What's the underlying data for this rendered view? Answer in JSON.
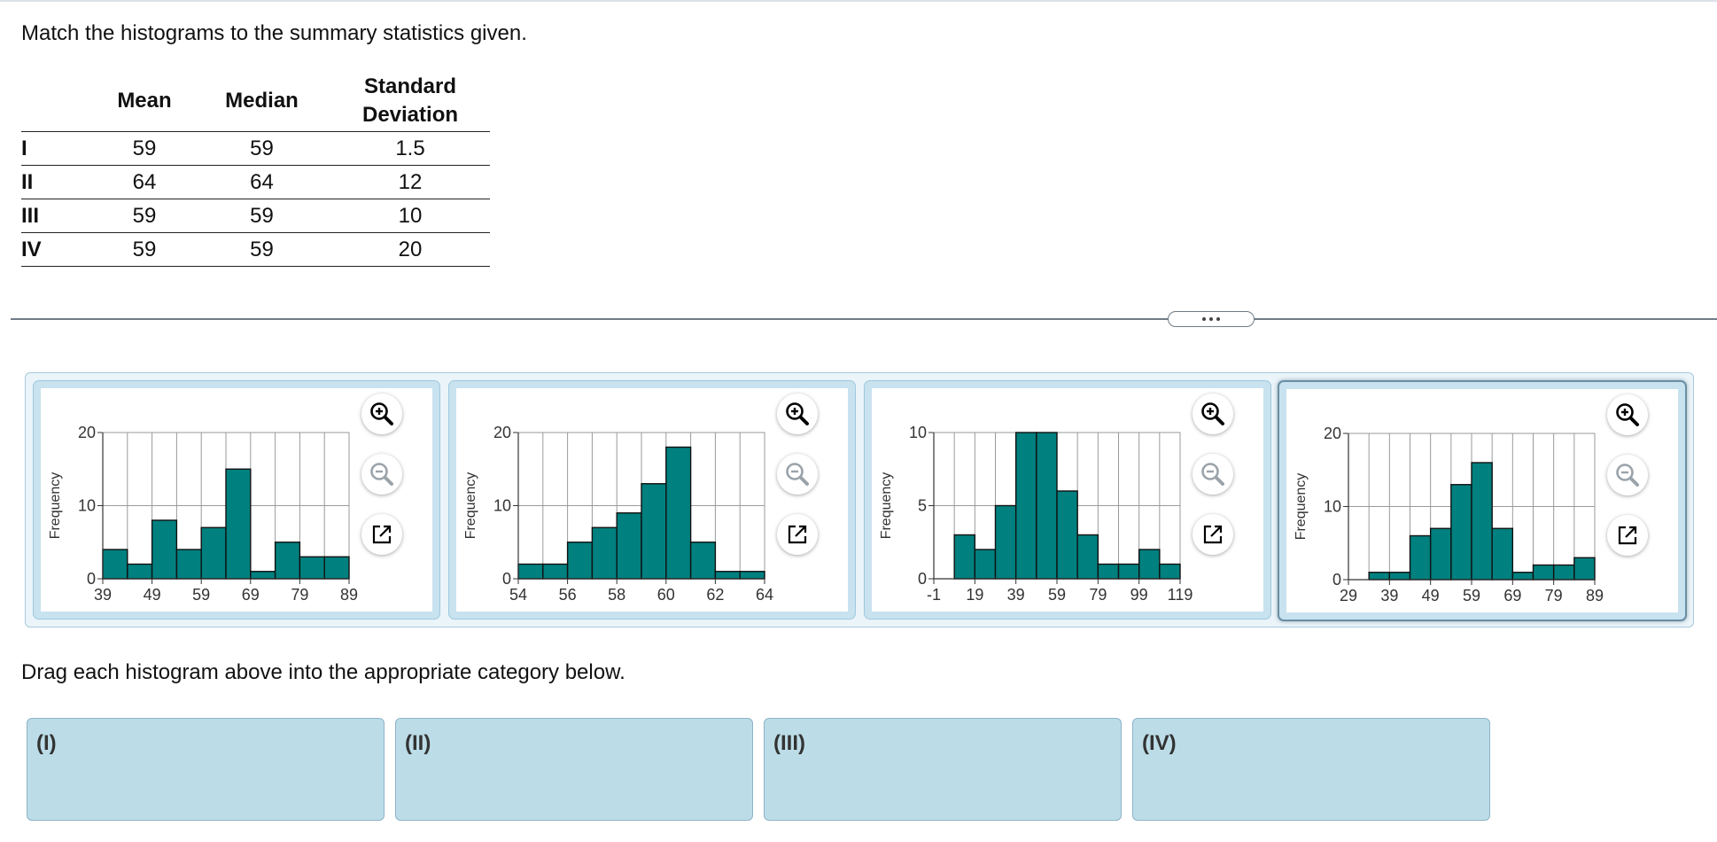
{
  "instruction": "Match the histograms to the summary statistics given.",
  "stats_table": {
    "headers": [
      "",
      "Mean",
      "Median",
      "Standard Deviation"
    ],
    "header_sd_lines": [
      "Standard",
      "Deviation"
    ],
    "rows": [
      {
        "label": "I",
        "mean": "59",
        "median": "59",
        "sd": "1.5"
      },
      {
        "label": "II",
        "mean": "64",
        "median": "64",
        "sd": "12"
      },
      {
        "label": "III",
        "mean": "59",
        "median": "59",
        "sd": "10"
      },
      {
        "label": "IV",
        "mean": "59",
        "median": "59",
        "sd": "20"
      }
    ]
  },
  "divider_handle": "•••",
  "colors": {
    "bar": "#00807f",
    "tray": "#eaf4f9",
    "card": "#c8e2ef",
    "drop": "#bcdde8"
  },
  "icons": [
    "zoom-in-icon",
    "zoom-out-icon",
    "popout-icon"
  ],
  "chart_data": [
    {
      "type": "bar",
      "ylabel": "Frequency",
      "xticks": [
        "39",
        "49",
        "59",
        "69",
        "79",
        "89"
      ],
      "xlim": [
        39,
        89
      ],
      "bin_width": 5,
      "yticks": [
        "0",
        "10",
        "20"
      ],
      "ylim": [
        0,
        20
      ],
      "values": [
        4,
        2,
        8,
        4,
        7,
        15,
        1,
        5,
        3,
        3
      ],
      "selected": false
    },
    {
      "type": "bar",
      "ylabel": "Frequency",
      "xticks": [
        "54",
        "56",
        "58",
        "60",
        "62",
        "64"
      ],
      "xlim": [
        54,
        64
      ],
      "bin_width": 1,
      "yticks": [
        "0",
        "10",
        "20"
      ],
      "ylim": [
        0,
        20
      ],
      "values": [
        2,
        2,
        5,
        7,
        9,
        13,
        18,
        5,
        1,
        1
      ],
      "selected": false
    },
    {
      "type": "bar",
      "ylabel": "Frequency",
      "xticks": [
        "-1",
        "19",
        "39",
        "59",
        "79",
        "99",
        "119"
      ],
      "xlim": [
        -1,
        119
      ],
      "bin_width": 10,
      "first_bin_start": 9,
      "yticks": [
        "0",
        "5",
        "10"
      ],
      "ylim": [
        0,
        10
      ],
      "values": [
        3,
        2,
        5,
        10,
        10,
        6,
        3,
        1,
        1,
        2,
        1
      ],
      "selected": false
    },
    {
      "type": "bar",
      "ylabel": "Frequency",
      "xticks": [
        "29",
        "39",
        "49",
        "59",
        "69",
        "79",
        "89"
      ],
      "xlim": [
        29,
        89
      ],
      "bin_width": 5,
      "yticks": [
        "0",
        "10",
        "20"
      ],
      "ylim": [
        0,
        20
      ],
      "values": [
        1,
        1,
        6,
        7,
        13,
        16,
        7,
        1,
        2,
        2,
        3
      ],
      "selected": true
    }
  ],
  "drag_prompt": "Drag each histogram above into the appropriate category below.",
  "drop_zones": [
    "(I)",
    "(II)",
    "(III)",
    "(IV)"
  ]
}
